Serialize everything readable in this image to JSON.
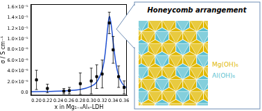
{
  "chart_data": {
    "type": "scatter",
    "x_label": "x in Mg₁₋ₓAlₓ-LDH",
    "y_label": "σ / S cm⁻¹",
    "xlim": [
      0.19,
      0.365
    ],
    "xticks": [
      {
        "value": 0.2,
        "label": "0.20"
      },
      {
        "value": 0.22,
        "label": "0.22"
      },
      {
        "value": 0.24,
        "label": "0.24"
      },
      {
        "value": 0.26,
        "label": "0.26"
      },
      {
        "value": 0.28,
        "label": "0.28"
      },
      {
        "value": 0.3,
        "label": "0.30"
      },
      {
        "value": 0.32,
        "label": "0.32"
      },
      {
        "value": 0.34,
        "label": "0.34"
      },
      {
        "value": 0.36,
        "label": "0.36"
      }
    ],
    "ylim": [
      -5e-07,
      1.65e-05
    ],
    "yticks": [
      {
        "value": 0,
        "label": "0.0"
      },
      {
        "value": 2e-06,
        "label": "2.0×10⁻⁶"
      },
      {
        "value": 4e-06,
        "label": "4.0×10⁻⁶"
      },
      {
        "value": 6e-06,
        "label": "6.0×10⁻⁶"
      },
      {
        "value": 8e-06,
        "label": "8.0×10⁻⁶"
      },
      {
        "value": 1e-05,
        "label": "1.0×10⁻⁵"
      },
      {
        "value": 1.2e-05,
        "label": "1.2×10⁻⁵"
      },
      {
        "value": 1.4e-05,
        "label": "1.4×10⁻⁵"
      },
      {
        "value": 1.6e-05,
        "label": "1.6×10⁻⁵"
      }
    ],
    "grid": false,
    "series": [
      {
        "type": "scatter",
        "color": "#000000",
        "marker": "square",
        "x": [
          0.2,
          0.22,
          0.25,
          0.26,
          0.28,
          0.3,
          0.31,
          0.32,
          0.333,
          0.34,
          0.35,
          0.36
        ],
        "values": [
          2.4e-06,
          8e-07,
          3e-07,
          4e-07,
          1.7e-06,
          2.2e-06,
          3e-06,
          3.5e-06,
          1.3e-05,
          8e-06,
          3e-06,
          1e-06
        ],
        "errors": [
          1.8e-06,
          8e-07,
          5e-07,
          6e-07,
          2e-06,
          2.4e-06,
          2.2e-06,
          2.6e-06,
          2e-06,
          2.5e-06,
          2e-06,
          1.2e-06
        ]
      },
      {
        "type": "line",
        "color": "#1f4fd1",
        "marker": "none",
        "line_style": "solid",
        "x": [
          0.19,
          0.22,
          0.25,
          0.28,
          0.3,
          0.31,
          0.32,
          0.325,
          0.33,
          0.333,
          0.336,
          0.34,
          0.345,
          0.35,
          0.355,
          0.36,
          0.365
        ],
        "values": [
          2e-07,
          2.5e-07,
          3.5e-07,
          6e-07,
          1.2e-06,
          2e-06,
          4.2e-06,
          7e-06,
          1.2e-05,
          1.42e-05,
          1.3e-05,
          9.5e-06,
          5.5e-06,
          3.2e-06,
          2e-06,
          1.3e-06,
          9e-07
        ]
      }
    ]
  },
  "panel": {
    "title": "Honeycomb arrangement",
    "labels": [
      {
        "text": "Mg(OH)₆",
        "color": "#e0b800"
      },
      {
        "text": "Al(OH)₆",
        "color": "#5bbfd0"
      }
    ]
  }
}
